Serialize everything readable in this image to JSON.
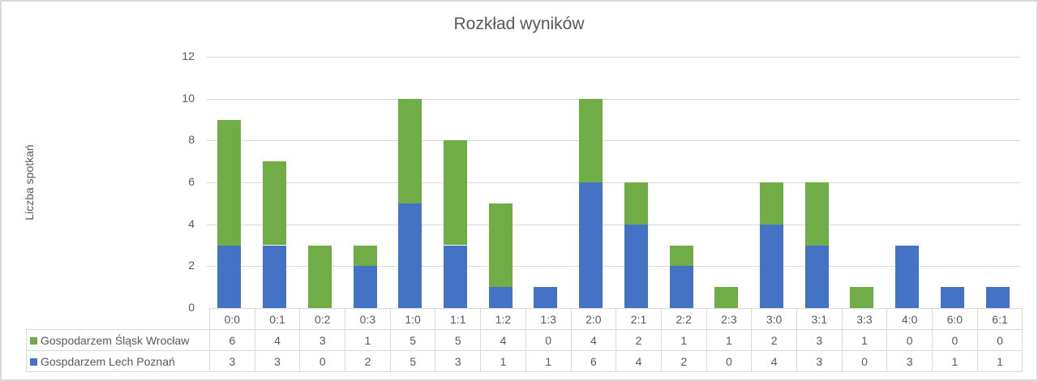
{
  "chart_data": {
    "type": "bar",
    "stacked": true,
    "title": "Rozkład wyników",
    "xlabel": "",
    "ylabel": "Liczba spotkań",
    "ylim": [
      0,
      12
    ],
    "yticks": [
      "0",
      "2",
      "4",
      "6",
      "8",
      "10",
      "12"
    ],
    "grid": true,
    "legend_position": "data-table",
    "categories": [
      "0:0",
      "0:1",
      "0:2",
      "0:3",
      "1:0",
      "1:1",
      "1:2",
      "1:3",
      "2:0",
      "2:1",
      "2:2",
      "2:3",
      "3:0",
      "3:1",
      "3:3",
      "4:0",
      "6:0",
      "6:1"
    ],
    "series": [
      {
        "name": "Gospodarzem Śląsk Wrocław",
        "color": "#70ad47",
        "values": [
          6,
          4,
          3,
          1,
          5,
          5,
          4,
          0,
          4,
          2,
          1,
          1,
          2,
          3,
          1,
          0,
          0,
          0
        ]
      },
      {
        "name": "Gospdarzem Lech Poznań",
        "color": "#4472c4",
        "values": [
          3,
          3,
          0,
          2,
          5,
          3,
          1,
          1,
          6,
          4,
          2,
          0,
          4,
          3,
          0,
          3,
          1,
          1
        ]
      }
    ]
  }
}
